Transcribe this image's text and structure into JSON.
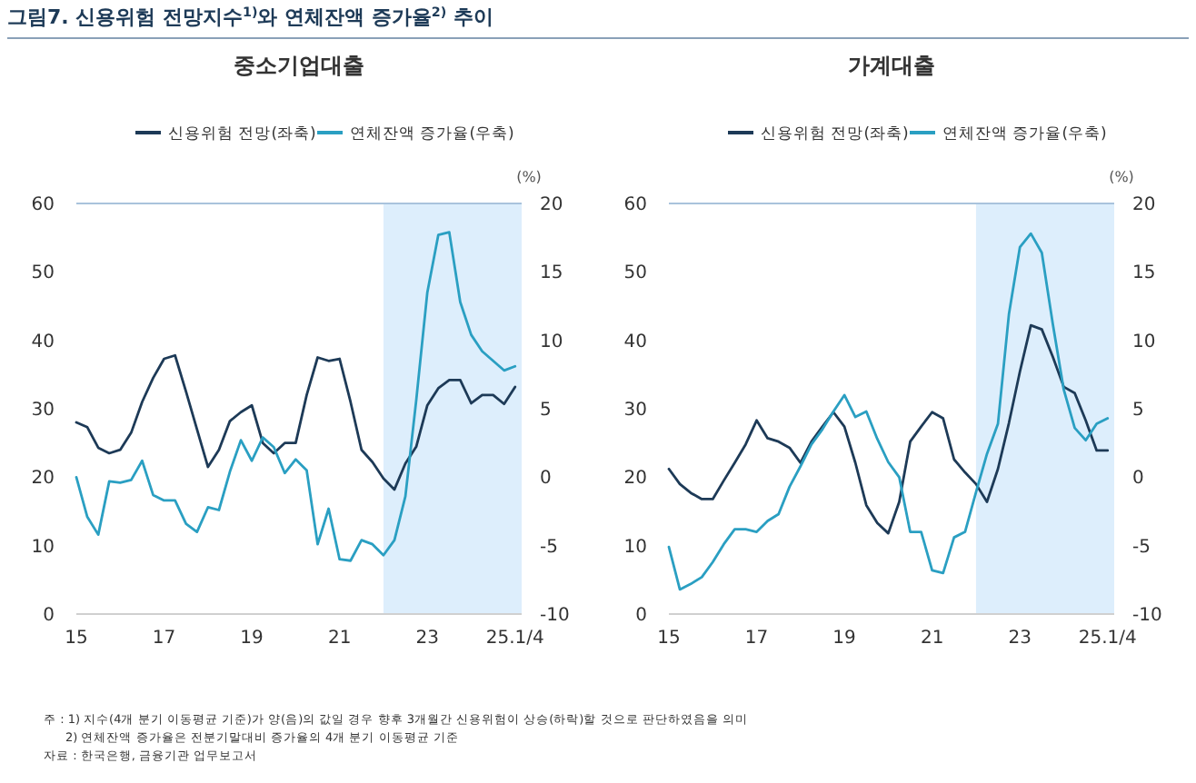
{
  "chart_data": [
    {
      "type": "line",
      "title": "그림7. 신용위험 전망지수$^{1)}$와 연체잔액 증가율$^{2)}$ 추이",
      "subtitle": "중소기업대출",
      "y2label": "(%)",
      "legend": "top",
      "grid": false,
      "x": [
        2015,
        2015.25,
        2015.5,
        2015.75,
        2016,
        2016.25,
        2016.5,
        2016.75,
        2017,
        2017.25,
        2017.5,
        2017.75,
        2018,
        2018.25,
        2018.5,
        2018.75,
        2019,
        2019.25,
        2019.5,
        2019.75,
        2020,
        2020.25,
        2020.5,
        2020.75,
        2021,
        2021.25,
        2021.5,
        2021.75,
        2022,
        2022.25,
        2022.5,
        2022.75,
        2023,
        2023.25,
        2023.5,
        2023.75,
        2024,
        2024.25,
        2024.5,
        2024.75,
        2025
      ],
      "xlim": [
        2015,
        2025.15
      ],
      "xticks": [
        {
          "value": 2015,
          "label": "15"
        },
        {
          "value": 2017,
          "label": "17"
        },
        {
          "value": 2019,
          "label": "19"
        },
        {
          "value": 2021,
          "label": "21"
        },
        {
          "value": 2023,
          "label": "23"
        },
        {
          "value": 2025,
          "label": "25.1/4"
        }
      ],
      "ylim": [
        0,
        60
      ],
      "yticks": [
        0,
        10,
        20,
        30,
        40,
        50,
        60
      ],
      "y2lim": [
        -10,
        20
      ],
      "y2ticks": [
        -10,
        -5,
        0,
        5,
        10,
        15,
        20
      ],
      "bands": [
        {
          "axis": "x",
          "from": 2022,
          "to": 2025.15,
          "color": "#ddeefc"
        }
      ],
      "series": [
        {
          "name": "신용위험 전망(좌축)",
          "color": "#1d3a57",
          "values": [
            28,
            27.3,
            24.3,
            23.5,
            24,
            26.5,
            31,
            34.5,
            37.3,
            37.8,
            32.5,
            27,
            21.5,
            24,
            28.2,
            29.5,
            30.5,
            25,
            23.5,
            25,
            25,
            32,
            37.5,
            37,
            37.3,
            31,
            24,
            22.2,
            19.8,
            18.2,
            22,
            24.5,
            30.5,
            33,
            34.2,
            34.2,
            30.8,
            32,
            32,
            30.7,
            33.2
          ]
        },
        {
          "name": "연체잔액 증가율(우축)",
          "color": "#2a9fc2",
          "axis": "y2",
          "values": [
            0,
            -2.9,
            -4.2,
            -0.3,
            -0.4,
            -0.2,
            1.2,
            -1.3,
            -1.7,
            -1.7,
            -3.4,
            -4,
            -2.2,
            -2.4,
            0.4,
            2.7,
            1.2,
            2.9,
            2.2,
            0.3,
            1.3,
            0.5,
            -4.9,
            -2.3,
            -6,
            -6.1,
            -4.6,
            -4.9,
            -5.7,
            -4.6,
            -1.4,
            5.7,
            13.5,
            17.7,
            17.9,
            12.8,
            10.4,
            9.2,
            8.5,
            7.8,
            8.1
          ]
        }
      ],
      "annotations": [
        "주 : 1) 지수(4개 분기 이동평균 기준)가 양(음)의 값일 경우 향후 3개월간 신용위험이 상승(하락)할 것으로 판단하였음을 의미",
        "2) 연체잔액 증가율은 전분기말대비 증가율의 4개 분기 이동평균 기준",
        "자료 : 한국은행, 금융기관 업무보고서"
      ]
    },
    {
      "type": "line",
      "title": "가계대출",
      "y2label": "(%)",
      "legend": "top",
      "grid": false,
      "x": [
        2015,
        2015.25,
        2015.5,
        2015.75,
        2016,
        2016.25,
        2016.5,
        2016.75,
        2017,
        2017.25,
        2017.5,
        2017.75,
        2018,
        2018.25,
        2018.5,
        2018.75,
        2019,
        2019.25,
        2019.5,
        2019.75,
        2020,
        2020.25,
        2020.5,
        2020.75,
        2021,
        2021.25,
        2021.5,
        2021.75,
        2022,
        2022.25,
        2022.5,
        2022.75,
        2023,
        2023.25,
        2023.5,
        2023.75,
        2024,
        2024.25,
        2024.5,
        2024.75,
        2025
      ],
      "xlim": [
        2015,
        2025.15
      ],
      "xticks": [
        {
          "value": 2015,
          "label": "15"
        },
        {
          "value": 2017,
          "label": "17"
        },
        {
          "value": 2019,
          "label": "19"
        },
        {
          "value": 2021,
          "label": "21"
        },
        {
          "value": 2023,
          "label": "23"
        },
        {
          "value": 2025,
          "label": "25.1/4"
        }
      ],
      "ylim": [
        0,
        60
      ],
      "yticks": [
        0,
        10,
        20,
        30,
        40,
        50,
        60
      ],
      "y2lim": [
        -10,
        20
      ],
      "y2ticks": [
        -10,
        -5,
        0,
        5,
        10,
        15,
        20
      ],
      "bands": [
        {
          "axis": "x",
          "from": 2022,
          "to": 2025.15,
          "color": "#ddeefc"
        }
      ],
      "series": [
        {
          "name": "신용위험 전망(좌축)",
          "color": "#1d3a57",
          "values": [
            21.2,
            19,
            17.7,
            16.8,
            16.8,
            19.5,
            22.1,
            24.8,
            28.3,
            25.7,
            25.2,
            24.3,
            22.1,
            25.2,
            27.4,
            29.5,
            27.4,
            22.1,
            15.9,
            13.3,
            11.8,
            16.4,
            25.2,
            27.4,
            29.5,
            28.6,
            22.6,
            20.7,
            19,
            16.4,
            21.2,
            27.9,
            35.4,
            42.2,
            41.6,
            37.6,
            33.2,
            32.3,
            28.3,
            23.9,
            23.9
          ]
        },
        {
          "name": "연체잔액 증가율(우축)",
          "color": "#2a9fc2",
          "axis": "y2",
          "values": [
            -5.1,
            -8.2,
            -7.8,
            -7.3,
            -6.2,
            -4.9,
            -3.8,
            -3.8,
            -4,
            -3.2,
            -2.7,
            -0.7,
            0.8,
            2.4,
            3.5,
            4.8,
            6,
            4.4,
            4.8,
            2.8,
            1.1,
            0,
            -4,
            -4,
            -6.8,
            -7,
            -4.4,
            -4,
            -1.1,
            1.7,
            3.9,
            11.9,
            16.8,
            17.8,
            16.4,
            11.2,
            6.4,
            3.6,
            2.7,
            3.9,
            4.3
          ]
        }
      ]
    }
  ]
}
